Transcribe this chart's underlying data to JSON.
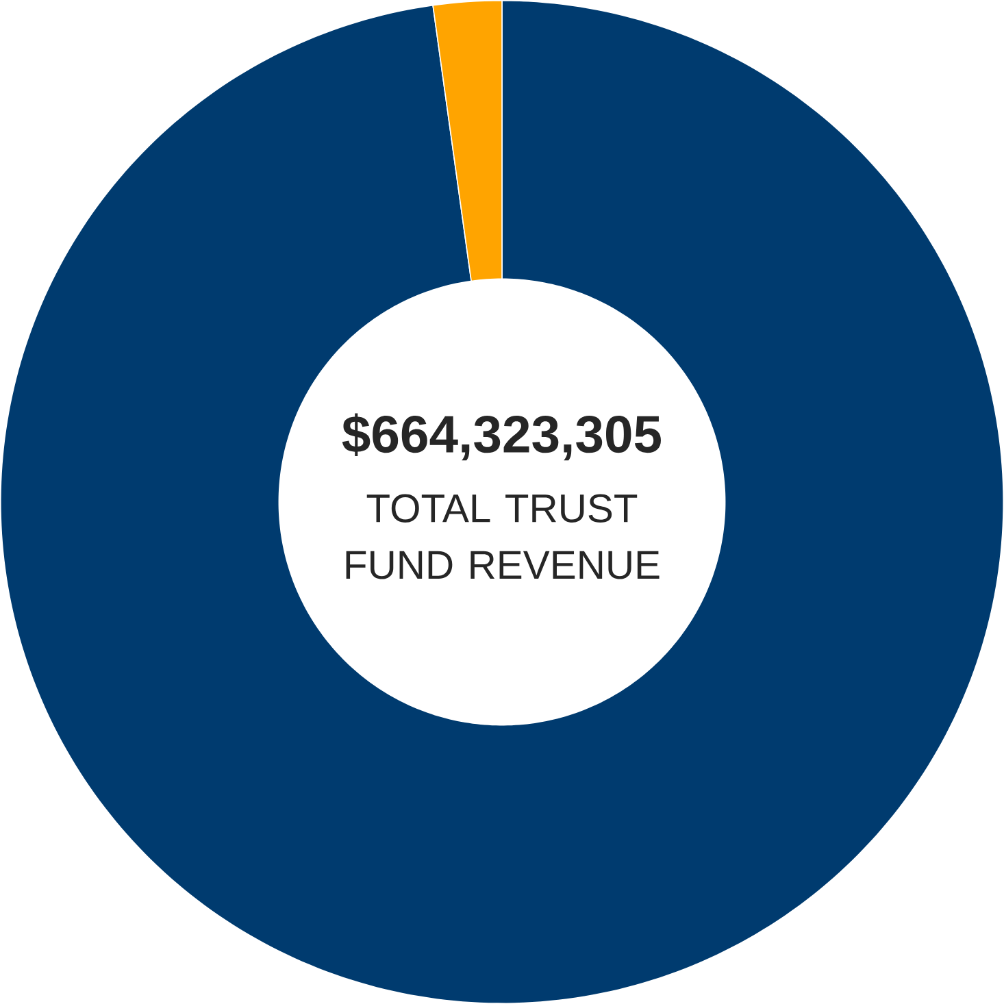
{
  "chart_data": {
    "type": "donut",
    "title": "$664,323,305",
    "subtitle": "TOTAL TRUST FUND REVENUE",
    "categories": [
      null,
      null
    ],
    "values": [
      97.8,
      2.2
    ],
    "colors": [
      "#003b6f",
      "#ffa400"
    ]
  }
}
